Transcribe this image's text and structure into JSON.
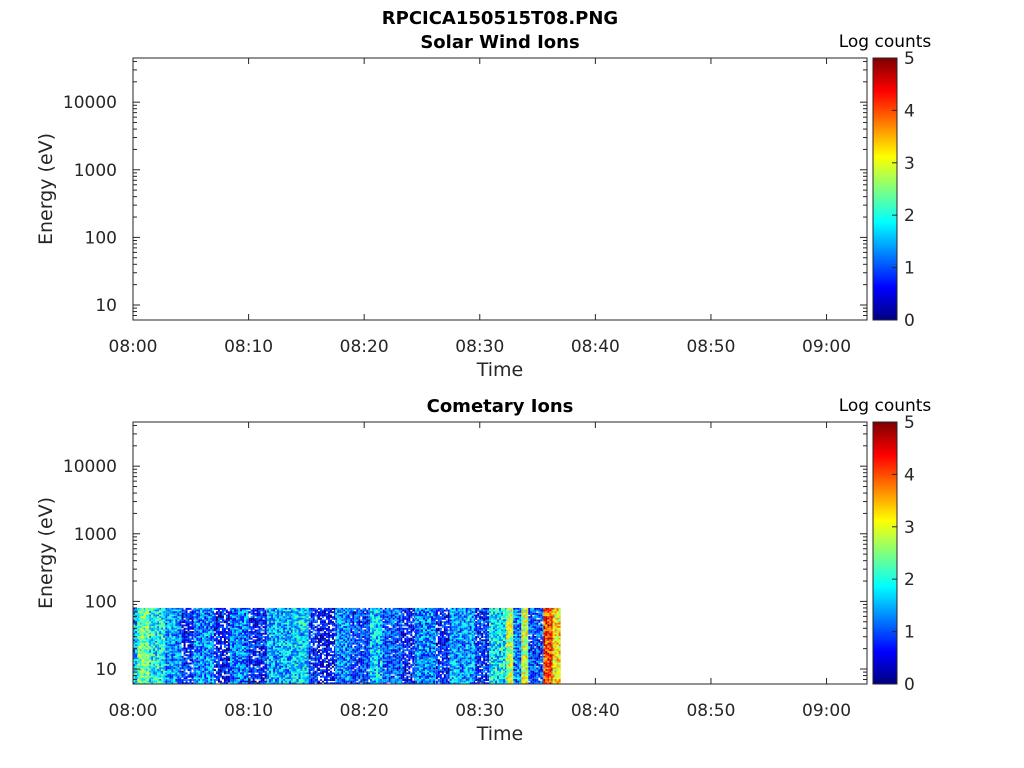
{
  "figure_title": "RPCICA150515T08.PNG",
  "colors": {
    "axis": "#262626",
    "colormap": [
      "#00007f",
      "#0000ff",
      "#007fff",
      "#00ffff",
      "#7fff7f",
      "#ffff00",
      "#ff7f00",
      "#ff0000",
      "#7f0000"
    ]
  },
  "chart_data": [
    {
      "type": "heatmap",
      "title": "Solar Wind Ions",
      "xlabel": "Time",
      "ylabel": "Energy (eV)",
      "yscale": "log",
      "ylim": [
        6,
        45000
      ],
      "x_ticks": [
        "08:00",
        "08:10",
        "08:20",
        "08:30",
        "08:40",
        "08:50",
        "09:00"
      ],
      "xlim_minutes": [
        0,
        63.5
      ],
      "y_ticks": [
        10,
        100,
        1000,
        10000
      ],
      "y_tick_labels": [
        "10",
        "100",
        "1000",
        "10000"
      ],
      "colorbar": {
        "label": "Log counts",
        "min": 0,
        "max": 5,
        "ticks": [
          "0",
          "1",
          "2",
          "3",
          "4",
          "5"
        ]
      },
      "data": "no data shown"
    },
    {
      "type": "heatmap",
      "title": "Cometary Ions",
      "xlabel": "Time",
      "ylabel": "Energy (eV)",
      "yscale": "log",
      "ylim": [
        6,
        45000
      ],
      "x_ticks": [
        "08:00",
        "08:10",
        "08:20",
        "08:30",
        "08:40",
        "08:50",
        "09:00"
      ],
      "xlim_minutes": [
        0,
        63.5
      ],
      "y_ticks": [
        10,
        100,
        1000,
        10000
      ],
      "y_tick_labels": [
        "10",
        "100",
        "1000",
        "10000"
      ],
      "colorbar": {
        "label": "Log counts",
        "min": 0,
        "max": 5,
        "ticks": [
          "0",
          "1",
          "2",
          "3",
          "4",
          "5"
        ]
      },
      "data_extent": {
        "time_start": "08:00",
        "time_end": "08:37",
        "energy_max_eV": 80
      },
      "time_bands": [
        {
          "t0": 0.0,
          "t1": 0.4,
          "level": 1.6
        },
        {
          "t0": 0.4,
          "t1": 1.4,
          "level": 2.4
        },
        {
          "t0": 1.4,
          "t1": 2.8,
          "level": 1.9
        },
        {
          "t0": 2.8,
          "t1": 4.2,
          "level": 1.4
        },
        {
          "t0": 4.2,
          "t1": 5.3,
          "level": 0.6
        },
        {
          "t0": 5.3,
          "t1": 7.0,
          "level": 1.3
        },
        {
          "t0": 7.0,
          "t1": 8.4,
          "level": 0.5
        },
        {
          "t0": 8.4,
          "t1": 10.0,
          "level": 1.2
        },
        {
          "t0": 10.0,
          "t1": 11.6,
          "level": 0.6
        },
        {
          "t0": 11.6,
          "t1": 13.8,
          "level": 1.5
        },
        {
          "t0": 13.8,
          "t1": 15.2,
          "level": 1.7
        },
        {
          "t0": 15.2,
          "t1": 16.0,
          "level": 0.7
        },
        {
          "t0": 16.0,
          "t1": 17.5,
          "level": 0.4
        },
        {
          "t0": 17.5,
          "t1": 18.8,
          "level": 1.3
        },
        {
          "t0": 18.8,
          "t1": 20.5,
          "level": 0.8
        },
        {
          "t0": 20.5,
          "t1": 21.6,
          "level": 1.6
        },
        {
          "t0": 21.6,
          "t1": 23.3,
          "level": 1.0
        },
        {
          "t0": 23.3,
          "t1": 24.4,
          "level": 0.5
        },
        {
          "t0": 24.4,
          "t1": 26.2,
          "level": 1.3
        },
        {
          "t0": 26.2,
          "t1": 27.4,
          "level": 0.6
        },
        {
          "t0": 27.4,
          "t1": 29.6,
          "level": 1.4
        },
        {
          "t0": 29.6,
          "t1": 30.8,
          "level": 0.7
        },
        {
          "t0": 30.8,
          "t1": 32.3,
          "level": 1.8
        },
        {
          "t0": 32.3,
          "t1": 32.9,
          "level": 2.8
        },
        {
          "t0": 32.9,
          "t1": 33.6,
          "level": 1.2
        },
        {
          "t0": 33.6,
          "t1": 34.2,
          "level": 2.9
        },
        {
          "t0": 34.2,
          "t1": 35.5,
          "level": 0.9
        },
        {
          "t0": 35.5,
          "t1": 36.3,
          "level": 4.1
        },
        {
          "t0": 36.3,
          "t1": 37.0,
          "level": 3.2
        }
      ]
    }
  ]
}
